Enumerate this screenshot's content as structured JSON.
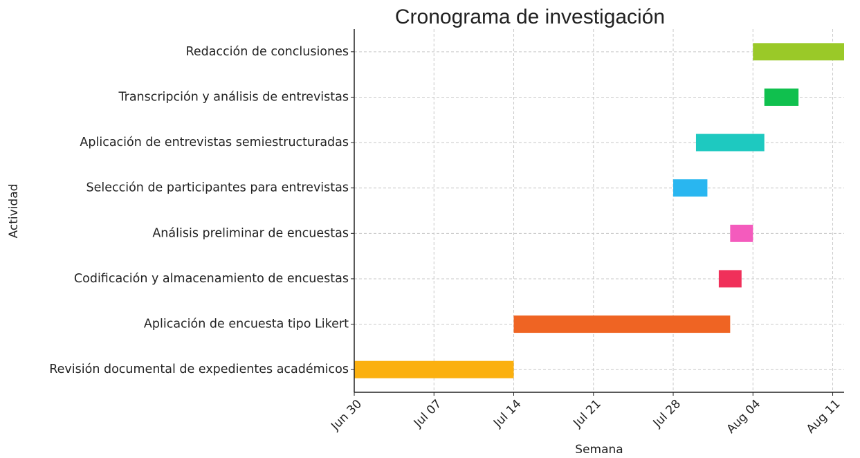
{
  "chart_data": {
    "type": "gantt",
    "title": "Cronograma de investigación",
    "xlabel": "Semana",
    "ylabel": "Actividad",
    "categories": [
      "Revisión documental de expedientes académicos",
      "Aplicación de encuesta tipo Likert",
      "Codificación y almacenamiento de encuestas",
      "Análisis preliminar de encuestas",
      "Selección de participantes para entrevistas",
      "Aplicación de entrevistas semiestructuradas",
      "Transcripción y análisis de entrevistas",
      "Redacción de conclusiones"
    ],
    "start": [
      "06-30",
      "07-14",
      "08-01",
      "08-02",
      "07-28",
      "07-30",
      "08-05",
      "08-04"
    ],
    "end": [
      "07-14",
      "08-02",
      "08-03",
      "08-04",
      "07-31",
      "08-05",
      "08-08",
      "08-12"
    ],
    "colors": [
      "#fbb00f",
      "#ef6423",
      "#f0305a",
      "#f45bbd",
      "#29b6f0",
      "#1ec9c0",
      "#10c04e",
      "#9ac928"
    ],
    "xlim": [
      "06-30",
      "08-12"
    ],
    "xticks": [
      {
        "value": "06-30",
        "label": "Jun 30"
      },
      {
        "value": "07-07",
        "label": "Jul 07"
      },
      {
        "value": "07-14",
        "label": "Jul 14"
      },
      {
        "value": "07-21",
        "label": "Jul 21"
      },
      {
        "value": "07-28",
        "label": "Jul 28"
      },
      {
        "value": "08-04",
        "label": "Aug 04"
      },
      {
        "value": "08-11",
        "label": "Aug 11"
      }
    ],
    "grid": true
  }
}
